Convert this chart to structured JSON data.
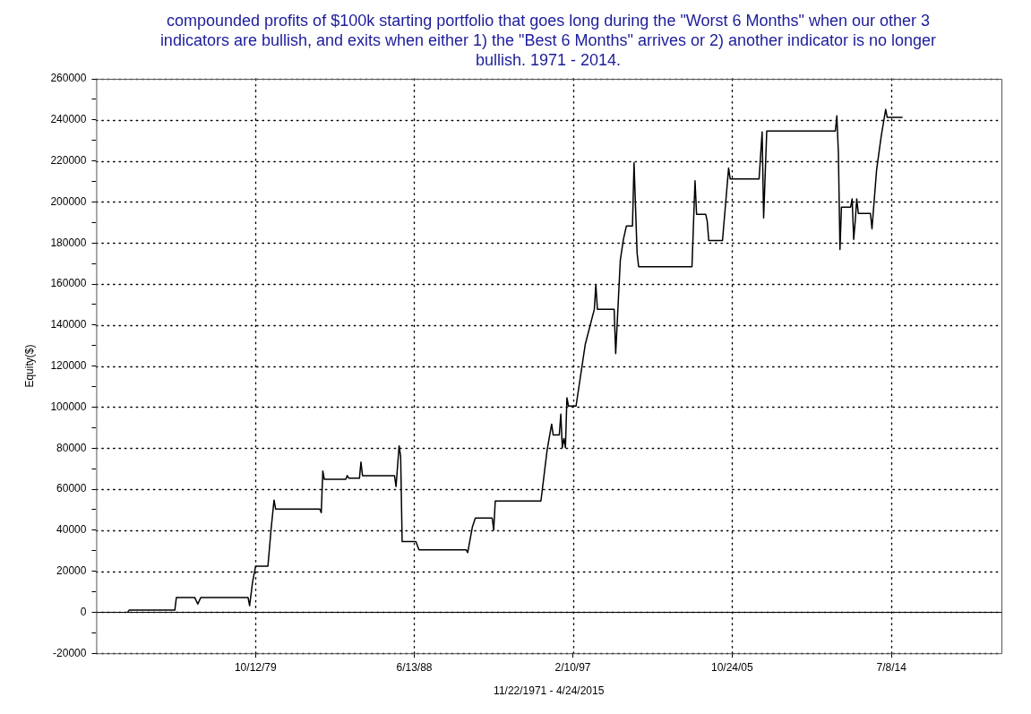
{
  "chart_data": {
    "type": "line",
    "title": "compounded profits of $100k starting portfolio that goes long during the \"Worst 6 Months\" when our other 3 indicators are bullish, and exits when either 1) the \"Best 6 Months\" arrives or 2) another indicator is no longer bullish. 1971 - 2014.",
    "xlabel": "11/22/1971 - 4/24/2015",
    "ylabel": "Equity($)",
    "color": "#000000",
    "grid": true,
    "legend": false,
    "marker": "none",
    "line_style": "solid",
    "xlim": [
      "1971-01-28",
      "2020-07-11"
    ],
    "xticks": [
      {
        "value": "1979-10-12",
        "label": "10/12/79"
      },
      {
        "value": "1988-06-13",
        "label": "6/13/88"
      },
      {
        "value": "1997-02-10",
        "label": "2/10/97"
      },
      {
        "value": "2005-10-24",
        "label": "10/24/05"
      },
      {
        "value": "2014-07-08",
        "label": "7/8/14"
      }
    ],
    "ylim": [
      -20000,
      260000
    ],
    "yticks": [
      -20000,
      {
        "value": -10000,
        "label": null
      },
      0,
      {
        "value": 10000,
        "label": null
      },
      20000,
      {
        "value": 30000,
        "label": null
      },
      40000,
      {
        "value": 50000,
        "label": null
      },
      60000,
      {
        "value": 70000,
        "label": null
      },
      80000,
      {
        "value": 90000,
        "label": null
      },
      100000,
      {
        "value": 110000,
        "label": null
      },
      120000,
      {
        "value": 130000,
        "label": null
      },
      140000,
      {
        "value": 150000,
        "label": null
      },
      160000,
      {
        "value": 170000,
        "label": null
      },
      180000,
      {
        "value": 190000,
        "label": null
      },
      200000,
      {
        "value": 210000,
        "label": null
      },
      220000,
      {
        "value": 230000,
        "label": null
      },
      240000,
      {
        "value": 250000,
        "label": null
      },
      260000
    ],
    "ref_lines": [
      {
        "axis": "y",
        "value": 0,
        "color": "#000000"
      }
    ],
    "x": [
      "1972-10",
      "1972-11",
      "1975-05",
      "1975-06",
      "1976-06",
      "1976-08",
      "1976-10",
      "1979-05",
      "1979-06",
      "1979-08",
      "1979-10",
      "1980-06",
      "1980-08",
      "1980-10",
      "1980-11",
      "1983-04",
      "1983-05",
      "1983-06",
      "1983-07",
      "1984-09",
      "1984-10",
      "1984-11",
      "1985-06",
      "1985-07",
      "1985-08",
      "1987-05",
      "1987-06",
      "1987-08",
      "1987-09",
      "1987-10",
      "1988-07",
      "1988-09",
      "1991-04",
      "1991-05",
      "1991-08",
      "1991-10",
      "1992-09",
      "1992-10",
      "1992-11",
      "1995-05",
      "1995-09",
      "1995-12",
      "1996-01",
      "1996-05",
      "1996-06",
      "1996-07",
      "1996-08",
      "1996-09",
      "1996-10",
      "1996-11",
      "1997-04",
      "1997-10",
      "1998-04",
      "1998-05",
      "1998-06",
      "1999-05",
      "1999-06",
      "1999-09",
      "1999-11",
      "2000-01",
      "2000-05",
      "2000-06",
      "2000-08",
      "2000-09",
      "2003-08",
      "2003-10",
      "2003-11",
      "2004-05",
      "2004-06",
      "2004-07",
      "2005-04",
      "2005-08",
      "2005-09",
      "2007-04",
      "2007-06",
      "2007-07",
      "2007-09",
      "2011-06",
      "2011-07",
      "2011-08",
      "2011-09",
      "2011-10",
      "2012-04",
      "2012-05",
      "2012-06",
      "2012-07",
      "2012-08",
      "2012-09",
      "2013-05",
      "2013-06",
      "2013-09",
      "2013-12",
      "2014-03",
      "2014-04",
      "2015-02"
    ],
    "values": [
      0,
      1000,
      1000,
      7200,
      7200,
      4000,
      7200,
      7200,
      3200,
      15000,
      22500,
      22500,
      40000,
      54700,
      50300,
      50300,
      48500,
      68800,
      64800,
      64800,
      66600,
      65300,
      65300,
      73200,
      66600,
      66600,
      61300,
      81100,
      76000,
      34500,
      34500,
      30400,
      30400,
      29100,
      41400,
      45900,
      45900,
      40100,
      54200,
      54200,
      78900,
      91700,
      86400,
      86400,
      96600,
      80200,
      84700,
      80200,
      104500,
      100500,
      100500,
      130500,
      147700,
      159600,
      147700,
      147700,
      126100,
      171500,
      181700,
      188300,
      188300,
      219100,
      175000,
      168400,
      168400,
      210300,
      194000,
      194000,
      190500,
      181200,
      181200,
      216500,
      211200,
      211200,
      234100,
      192200,
      234600,
      234600,
      242000,
      223500,
      176800,
      197500,
      197500,
      201500,
      181700,
      190500,
      201500,
      194400,
      194400,
      186900,
      215600,
      231900,
      245100,
      241200,
      241200
    ]
  }
}
